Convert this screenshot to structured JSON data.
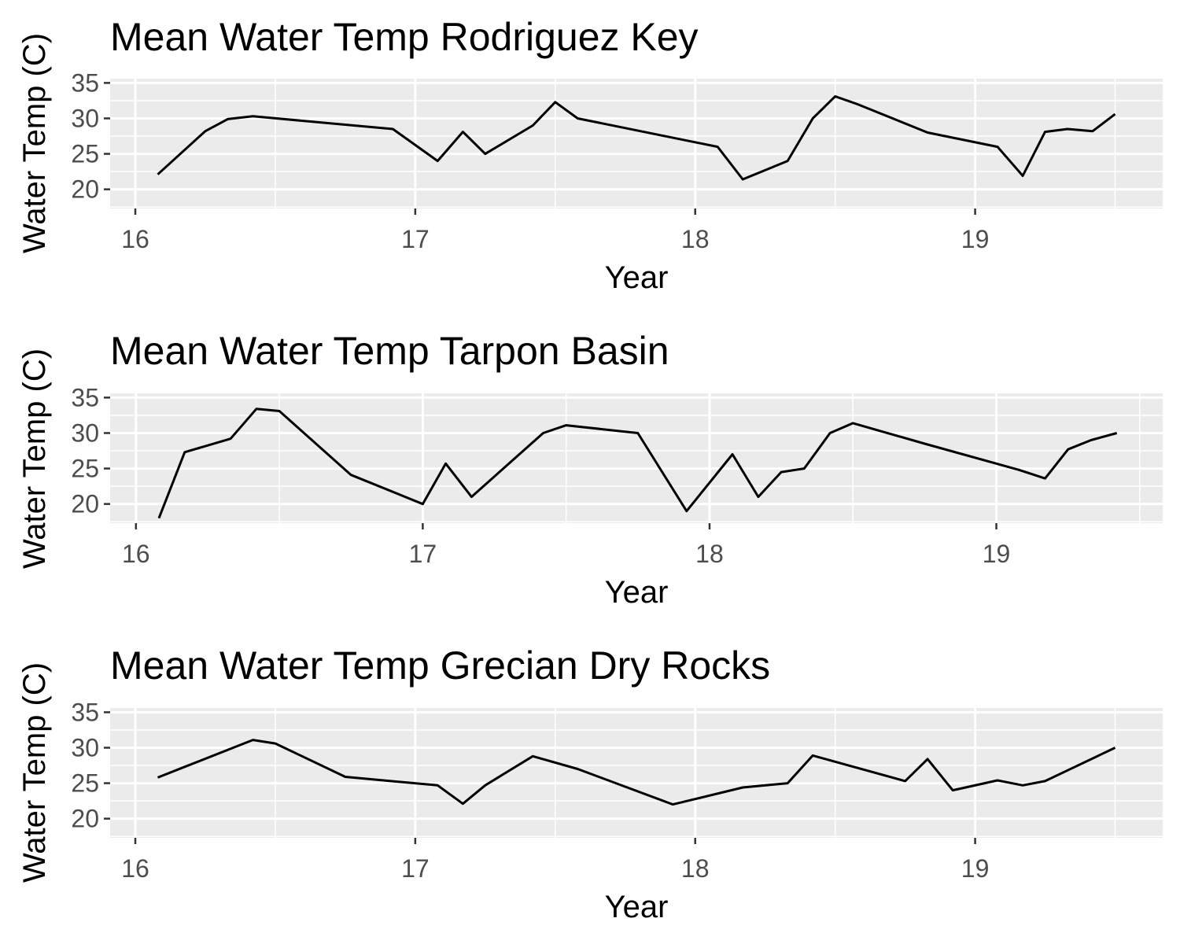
{
  "chart_data": [
    {
      "type": "line",
      "title": "Mean Water Temp Rodriguez Key",
      "xlabel": "Year",
      "ylabel": "Water Temp (C)",
      "xlim": [
        15.91,
        19.67
      ],
      "ylim": [
        17.3,
        35.6
      ],
      "x_ticks": [
        16,
        17,
        18,
        19
      ],
      "x_tick_labels": [
        "16",
        "17",
        "18",
        "19"
      ],
      "y_ticks": [
        20,
        25,
        30,
        35
      ],
      "y_tick_labels": [
        "20",
        "25",
        "30",
        "35"
      ],
      "grid": true,
      "series": [
        {
          "color": "#000000",
          "x": [
            16.08,
            16.25,
            16.33,
            16.42,
            16.92,
            17.08,
            17.17,
            17.25,
            17.42,
            17.5,
            17.58,
            18.08,
            18.17,
            18.33,
            18.42,
            18.5,
            18.58,
            18.83,
            19.08,
            19.17,
            19.25,
            19.33,
            19.42,
            19.5
          ],
          "y": [
            22.1,
            28.2,
            29.9,
            30.3,
            28.5,
            24.0,
            28.1,
            25.0,
            29.0,
            32.3,
            30.0,
            26.0,
            21.4,
            24.0,
            30.0,
            33.1,
            32.0,
            28.0,
            26.0,
            21.9,
            28.1,
            28.5,
            28.2,
            30.6
          ]
        }
      ]
    },
    {
      "type": "line",
      "title": "Mean Water Temp Tarpon Basin",
      "xlabel": "Year",
      "ylabel": "Water Temp (C)",
      "xlim": [
        15.91,
        19.58
      ],
      "ylim": [
        17.3,
        35.6
      ],
      "x_ticks": [
        16,
        17,
        18,
        19
      ],
      "x_tick_labels": [
        "16",
        "17",
        "18",
        "19"
      ],
      "y_ticks": [
        20,
        25,
        30,
        35
      ],
      "y_tick_labels": [
        "20",
        "25",
        "30",
        "35"
      ],
      "grid": true,
      "series": [
        {
          "color": "#000000",
          "x": [
            16.08,
            16.17,
            16.33,
            16.42,
            16.5,
            16.75,
            17.0,
            17.08,
            17.17,
            17.42,
            17.5,
            17.75,
            17.92,
            18.08,
            18.17,
            18.25,
            18.33,
            18.42,
            18.5,
            18.75,
            19.08,
            19.17,
            19.25,
            19.33,
            19.42
          ],
          "y": [
            18.0,
            27.3,
            29.2,
            33.4,
            33.1,
            24.1,
            20.0,
            25.7,
            21.0,
            30.0,
            31.1,
            30.0,
            19.0,
            27.0,
            21.0,
            24.5,
            25.0,
            30.0,
            31.4,
            28.5,
            24.8,
            23.6,
            27.7,
            29.0,
            30.0
          ]
        }
      ]
    },
    {
      "type": "line",
      "title": "Mean Water Temp Grecian Dry Rocks",
      "xlabel": "Year",
      "ylabel": "Water Temp (C)",
      "xlim": [
        15.91,
        19.67
      ],
      "ylim": [
        17.3,
        35.6
      ],
      "x_ticks": [
        16,
        17,
        18,
        19
      ],
      "x_tick_labels": [
        "16",
        "17",
        "18",
        "19"
      ],
      "y_ticks": [
        20,
        25,
        30,
        35
      ],
      "y_tick_labels": [
        "20",
        "25",
        "30",
        "35"
      ],
      "grid": true,
      "series": [
        {
          "color": "#000000",
          "x": [
            16.08,
            16.17,
            16.42,
            16.5,
            16.75,
            17.08,
            17.17,
            17.25,
            17.42,
            17.58,
            17.92,
            18.17,
            18.33,
            18.42,
            18.75,
            18.83,
            18.92,
            19.08,
            19.17,
            19.25,
            19.33,
            19.5
          ],
          "y": [
            25.8,
            27.2,
            31.1,
            30.6,
            25.9,
            24.7,
            22.1,
            24.7,
            28.8,
            27.0,
            22.0,
            24.4,
            25.0,
            28.9,
            25.3,
            28.4,
            24.0,
            25.4,
            24.7,
            25.3,
            26.8,
            30.0
          ]
        }
      ]
    }
  ]
}
